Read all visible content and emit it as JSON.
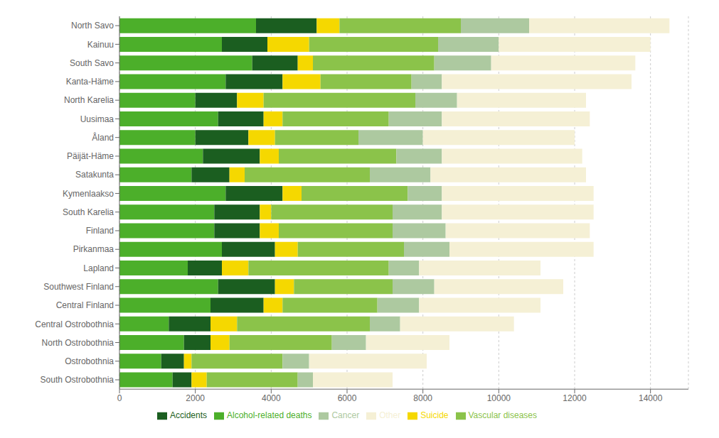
{
  "chart_data": {
    "type": "bar",
    "orientation": "horizontal",
    "stacked": true,
    "categories": [
      "North Savo",
      "Kainuu",
      "South Savo",
      "Kanta-Häme",
      "North Karelia",
      "Uusimaa",
      "Åland",
      "Päijät-Häme",
      "Satakunta",
      "Kymenlaakso",
      "South Karelia",
      "Finland",
      "Pirkanmaa",
      "Lapland",
      "Southwest Finland",
      "Central Finland",
      "Central Ostrobothnia",
      "North Ostrobothnia",
      "Ostrobothnia",
      "South Ostrobothnia"
    ],
    "series": [
      {
        "name": "Alcohol-related deaths",
        "color": "#4caf2a",
        "values": [
          3600,
          2700,
          3500,
          2800,
          2000,
          2600,
          2000,
          2200,
          1900,
          2800,
          2500,
          2500,
          2700,
          1800,
          2600,
          2400,
          1300,
          1700,
          1100,
          1400
        ]
      },
      {
        "name": "Accidents",
        "color": "#1b5e20",
        "values": [
          1600,
          1200,
          1200,
          1500,
          1100,
          1200,
          1400,
          1500,
          1000,
          1500,
          1200,
          1200,
          1400,
          900,
          1500,
          1400,
          1100,
          700,
          600,
          500
        ]
      },
      {
        "name": "Suicide",
        "color": "#f5d800",
        "values": [
          600,
          1100,
          400,
          1000,
          700,
          500,
          700,
          500,
          400,
          500,
          300,
          500,
          600,
          700,
          500,
          500,
          700,
          500,
          200,
          400
        ]
      },
      {
        "name": "Vascular diseases",
        "color": "#8bc34a",
        "values": [
          3200,
          3400,
          3200,
          2400,
          4000,
          2800,
          2200,
          3100,
          3300,
          2800,
          3200,
          3000,
          2800,
          3700,
          2600,
          2500,
          3500,
          2700,
          2400,
          2400
        ]
      },
      {
        "name": "Cancer",
        "color": "#adc9a0",
        "values": [
          1800,
          1600,
          1500,
          800,
          1100,
          1400,
          1700,
          1200,
          1600,
          900,
          1300,
          1400,
          1200,
          800,
          1100,
          1100,
          800,
          900,
          700,
          400
        ]
      },
      {
        "name": "Other",
        "color": "#f5f0d5",
        "values": [
          3700,
          4000,
          3800,
          5000,
          3400,
          3900,
          4000,
          3700,
          4100,
          4000,
          4000,
          3800,
          3800,
          3200,
          3400,
          3200,
          3000,
          2200,
          3100,
          2100
        ]
      }
    ],
    "xlim": [
      0,
      15000
    ],
    "xticks": [
      0,
      2000,
      4000,
      6000,
      8000,
      10000,
      12000,
      14000
    ],
    "grid": true,
    "legend": "bottom"
  }
}
